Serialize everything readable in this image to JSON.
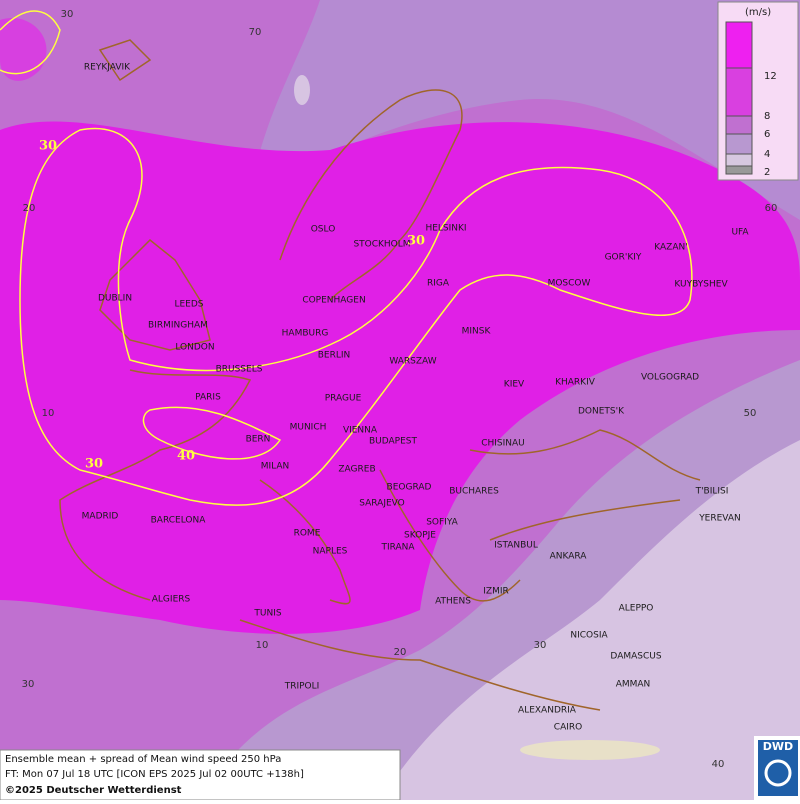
{
  "map": {
    "cities": [
      "REYKJAVIK",
      "OSLO",
      "STOCKHOLM",
      "HELSINKI",
      "DUBLIN",
      "LEEDS",
      "BIRMINGHAM",
      "LONDON",
      "COPENHAGEN",
      "HAMBURG",
      "BERLIN",
      "RIGA",
      "MOSCOW",
      "GOR'KIY",
      "KAZAN'",
      "UFA",
      "KUYBYSHEV",
      "MINSK",
      "WARSZAW",
      "BRUSSELS",
      "PARIS",
      "PRAGUE",
      "KIEV",
      "KHARKIV",
      "VOLGOGRAD",
      "DONETS'K",
      "MUNICH",
      "VIENNA",
      "BUDAPEST",
      "BERN",
      "MILAN",
      "ZAGREB",
      "CHISINAU",
      "BEOGRAD",
      "BUCHARES",
      "T'BILISI",
      "YEREVAN",
      "MADRID",
      "BARCELONA",
      "SARAJEVO",
      "SOFIYA",
      "ROME",
      "SKOPJE",
      "TIRANA",
      "ISTANBUL",
      "ANKARA",
      "NAPLES",
      "ALGIERS",
      "ATHENS",
      "IZMIR",
      "ALEPPO",
      "TUNIS",
      "NICOSIA",
      "DAMASCUS",
      "AMMAN",
      "TRIPOLI",
      "ALEXANDRIA",
      "CAIRO"
    ],
    "grid_labels": [
      "30",
      "70",
      "60",
      "50",
      "40",
      "30",
      "20",
      "10",
      "20",
      "10",
      "30"
    ],
    "contour_labels": [
      "30",
      "30",
      "30",
      "40"
    ],
    "legend": {
      "unit": "(m/s)",
      "labels": [
        "12",
        "8",
        "6",
        "4",
        "2"
      ]
    },
    "footer": [
      "Ensemble mean + spread of Mean wind speed 250 hPa",
      "FT: Mon 07 Jul 18 UTC [ICON EPS 2025 Jul 02 00UTC +138h]",
      "©2025 Deutscher Wetterdienst"
    ],
    "logo": "DWD"
  }
}
